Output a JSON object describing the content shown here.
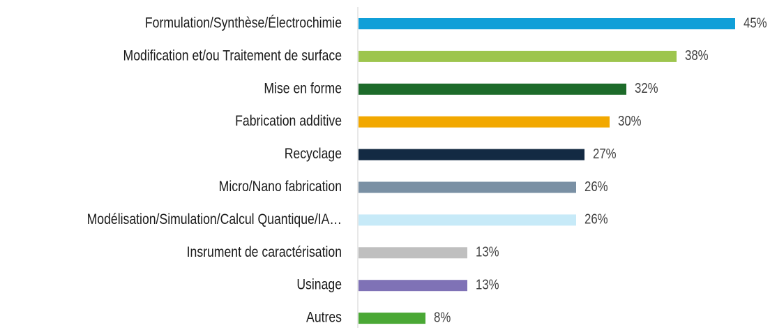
{
  "chart_data": {
    "type": "bar",
    "orientation": "horizontal",
    "categories": [
      "Formulation/Synthèse/Électrochimie",
      "Modification et/ou Traitement de surface",
      "Mise en forme",
      "Fabrication additive",
      "Recyclage",
      "Micro/Nano fabrication",
      "Modélisation/Simulation/Calcul Quantique/IA…",
      "Insrument de caractérisation",
      "Usinage",
      "Autres"
    ],
    "values": [
      45,
      38,
      32,
      30,
      27,
      26,
      26,
      13,
      13,
      8
    ],
    "value_labels": [
      "45%",
      "38%",
      "32%",
      "30%",
      "27%",
      "26%",
      "26%",
      "13%",
      "13%",
      "8%"
    ],
    "colors": [
      "#109fd8",
      "#9dc54d",
      "#1d6b2a",
      "#f2a800",
      "#132a43",
      "#7a90a4",
      "#c7eaf8",
      "#bfbfbf",
      "#7f72b6",
      "#4aa835"
    ]
  }
}
